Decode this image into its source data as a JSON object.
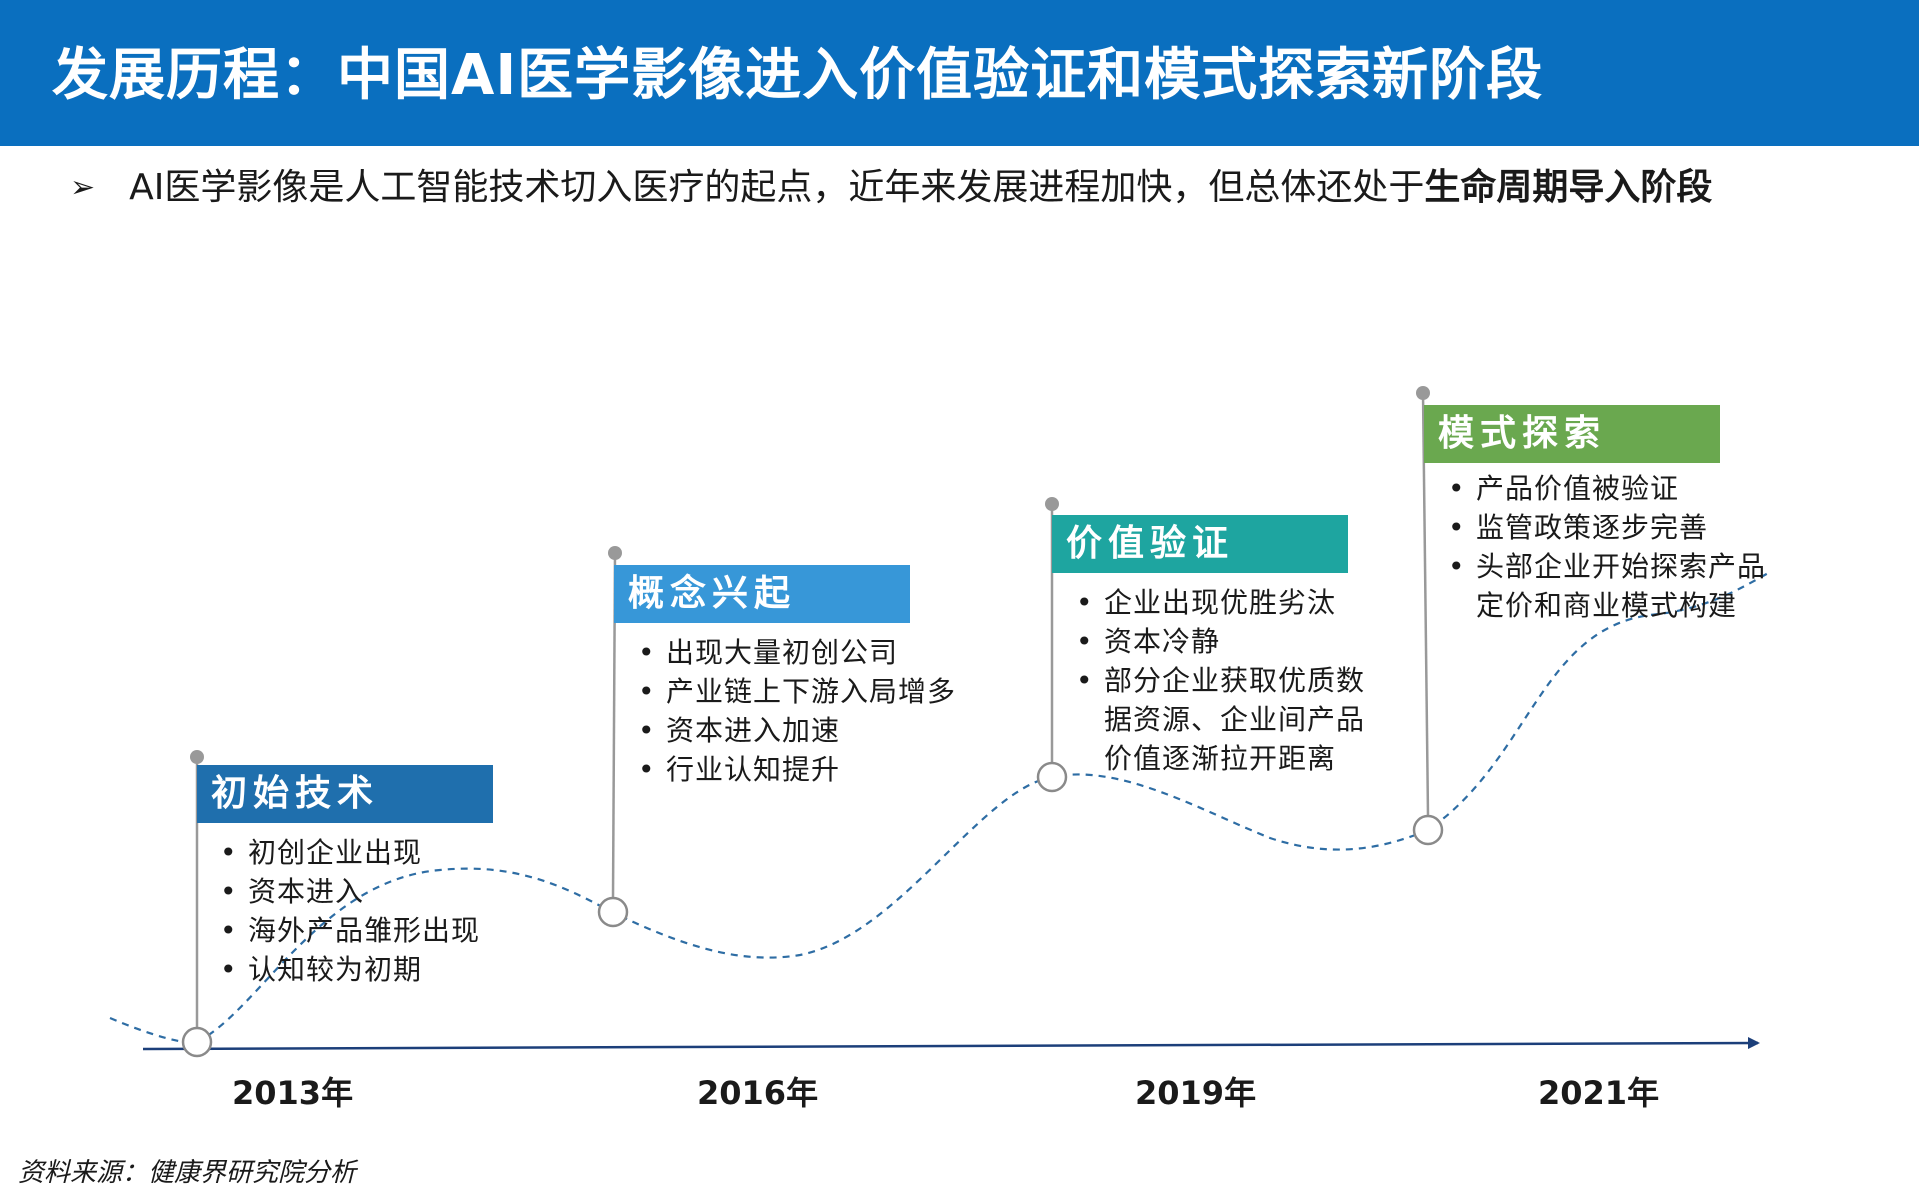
{
  "header": {
    "title": "发展历程：中国AI医学影像进入价值验证和模式探索新阶段"
  },
  "subtitle": {
    "bullet": "➢",
    "text": "AI医学影像是人工智能技术切入医疗的起点，近年来发展进程加快，但总体还处于",
    "emphasis": "生命周期导入阶段"
  },
  "stages": [
    {
      "title": "初始技术",
      "color": "#1f6fad",
      "items": [
        "初创企业出现",
        "资本进入",
        "海外产品雏形出现",
        "认知较为初期"
      ]
    },
    {
      "title": "概念兴起",
      "color": "#3797d8",
      "items": [
        "出现大量初创公司",
        "产业链上下游入局增多",
        "资本进入加速",
        "行业认知提升"
      ]
    },
    {
      "title": "价值验证",
      "color": "#1ea5a0",
      "items": [
        "企业出现优胜劣汰",
        "资本冷静",
        "部分企业获取优质数",
        "据资源、企业间产品",
        "价值逐渐拉开距离"
      ]
    },
    {
      "title": "模式探索",
      "color": "#6aa84f",
      "items": [
        "产品价值被验证",
        "监管政策逐步完善",
        "头部企业开始探索产品",
        "定价和商业模式构建"
      ]
    }
  ],
  "timeline": {
    "years": [
      "2013年",
      "2016年",
      "2019年",
      "2021年"
    ],
    "bullet_char": "•"
  },
  "source": "资料来源：健康界研究院分析"
}
